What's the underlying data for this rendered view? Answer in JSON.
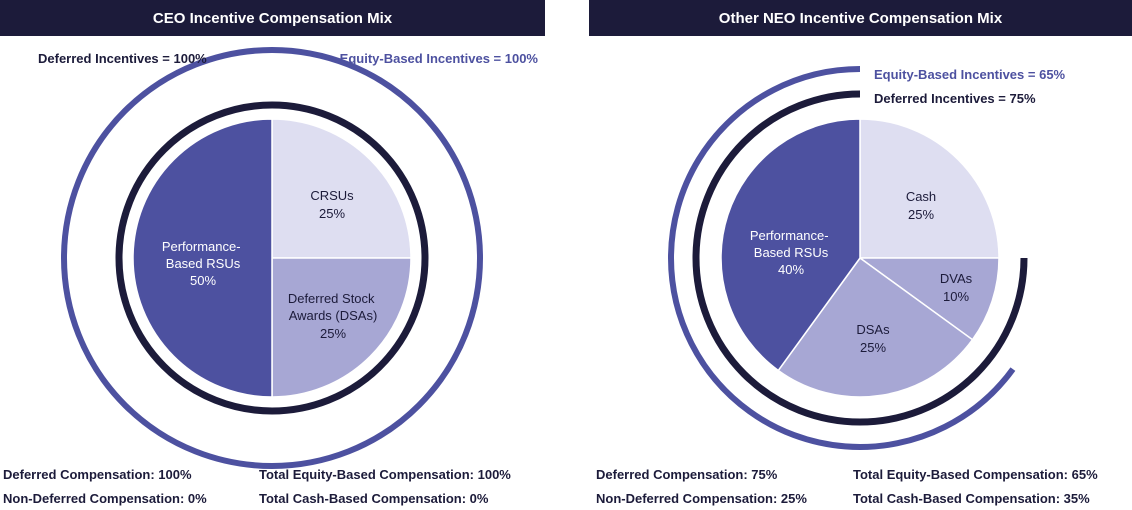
{
  "colors": {
    "navy": "#1c1b3a",
    "equity_ring": "#4d51a0",
    "slice_dark": "#4d51a0",
    "slice_mid": "#a7a7d4",
    "slice_light": "#dedef1",
    "header_bg": "#1c1b3a"
  },
  "chart_data": [
    {
      "type": "pie",
      "title": "CEO Incentive Compensation Mix",
      "slices": [
        {
          "label": "CRSUs",
          "value": 25,
          "display": "25%"
        },
        {
          "label": "Deferred Stock Awards (DSAs)",
          "value": 25,
          "display": "25%"
        },
        {
          "label": "Performance-Based RSUs",
          "value": 50,
          "display": "50%"
        }
      ],
      "rings": [
        {
          "label": "Deferred Incentives = 100%",
          "value": 100,
          "color": "#1c1b3a"
        },
        {
          "label": "Equity-Based Incentives = 100%",
          "value": 100,
          "color": "#4d51a0"
        }
      ],
      "footer": {
        "left": [
          "Deferred Compensation: 100%",
          "Non-Deferred Compensation: 0%"
        ],
        "right": [
          "Total Equity-Based Compensation: 100%",
          "Total Cash-Based Compensation: 0%"
        ]
      }
    },
    {
      "type": "pie",
      "title": "Other NEO Incentive Compensation Mix",
      "slices": [
        {
          "label": "Cash",
          "value": 25,
          "display": "25%"
        },
        {
          "label": "DVAs",
          "value": 10,
          "display": "10%"
        },
        {
          "label": "DSAs",
          "value": 25,
          "display": "25%"
        },
        {
          "label": "Performance-Based RSUs",
          "value": 40,
          "display": "40%"
        }
      ],
      "rings": [
        {
          "label": "Equity-Based Incentives = 65%",
          "value": 65,
          "color": "#4d51a0"
        },
        {
          "label": "Deferred Incentives = 75%",
          "value": 75,
          "color": "#1c1b3a"
        }
      ],
      "footer": {
        "left": [
          "Deferred Compensation: 75%",
          "Non-Deferred Compensation: 25%"
        ],
        "right": [
          "Total Equity-Based Compensation: 65%",
          "Total Cash-Based Compensation: 35%"
        ]
      }
    }
  ]
}
